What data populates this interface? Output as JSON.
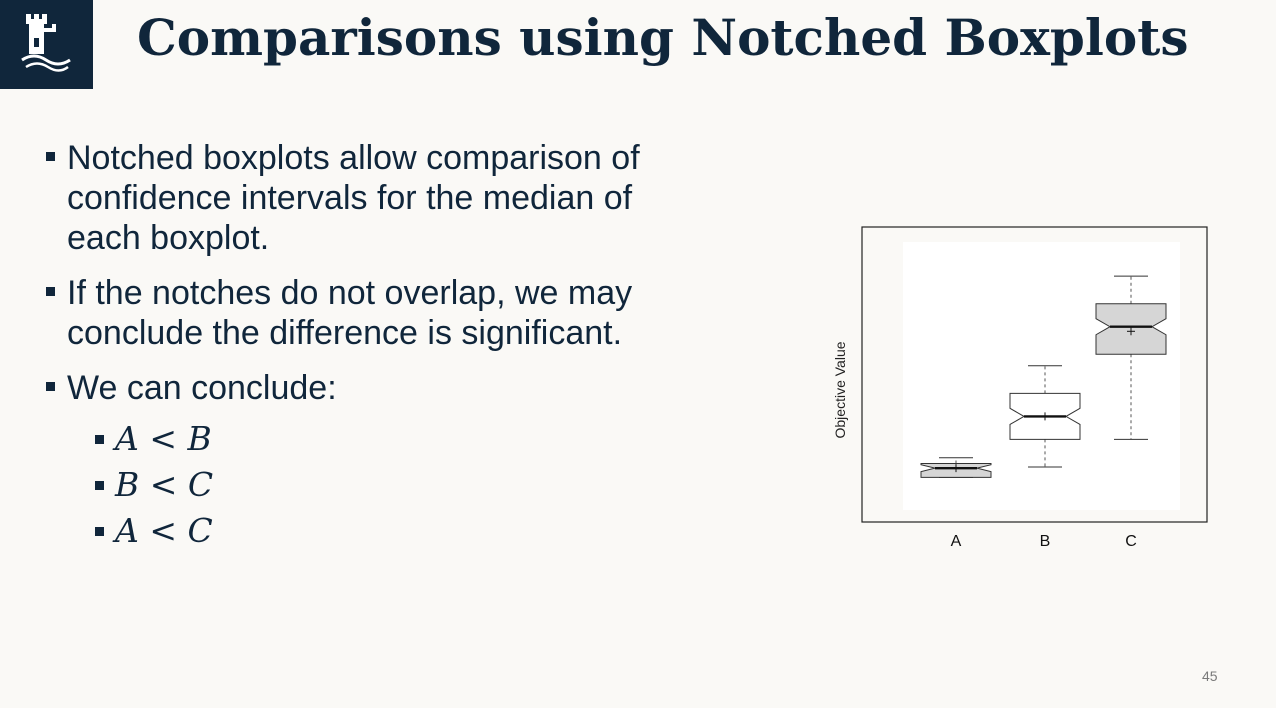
{
  "header": {
    "title": "Comparisons using Notched Boxplots",
    "logo_icon": "castle-tower-icon",
    "logo_bg": "#10263b"
  },
  "bullets": [
    "Notched boxplots allow comparison of confidence intervals for the median of each boxplot.",
    "If the notches do not overlap, we may conclude the difference is significant.",
    "We can conclude:"
  ],
  "conclusions": [
    "A < B",
    "B < C",
    "A < C"
  ],
  "page_number": "45",
  "chart_data": {
    "type": "boxplot",
    "notched": true,
    "ylabel": "Objective Value",
    "xlabel": "",
    "categories": [
      "A",
      "B",
      "C"
    ],
    "ylim": [
      0,
      10
    ],
    "grid": false,
    "boxes": [
      {
        "name": "A",
        "whisker_low": 0.55,
        "q1": 0.55,
        "median": 0.95,
        "q3": 1.15,
        "whisker_high": 1.4,
        "notch_low": 0.8,
        "notch_high": 1.1,
        "mean": 0.95,
        "fill": "#d6d6d6"
      },
      {
        "name": "B",
        "whisker_low": 1.0,
        "q1": 2.2,
        "median": 3.2,
        "q3": 4.2,
        "whisker_high": 5.4,
        "notch_low": 2.85,
        "notch_high": 3.55,
        "mean": 3.2,
        "fill": "#ffffff"
      },
      {
        "name": "C",
        "whisker_low": 2.2,
        "q1": 5.9,
        "median": 7.1,
        "q3": 8.1,
        "whisker_high": 9.3,
        "notch_low": 6.75,
        "notch_high": 7.45,
        "mean": 6.9,
        "fill": "#d6d6d6"
      }
    ]
  }
}
